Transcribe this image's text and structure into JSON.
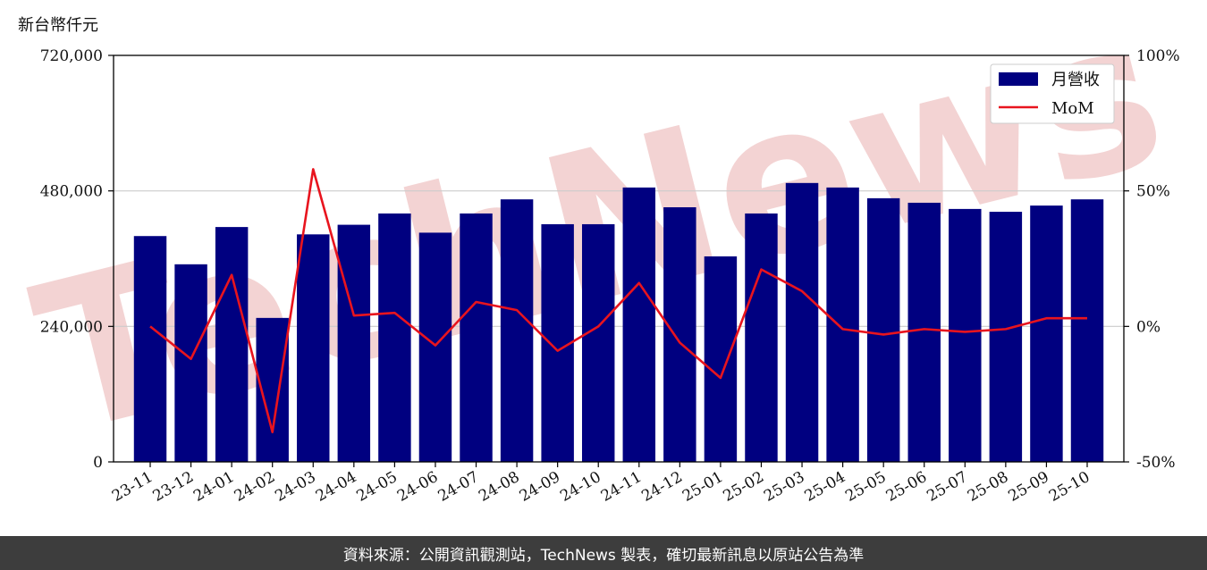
{
  "unit_label": "新台幣仟元",
  "footer_text": "資料來源：公開資訊觀測站，TechNews 製表，確切最新訊息以原站公告為準",
  "watermark_text": "TechNews",
  "colors": {
    "bar": "#000080",
    "line": "#e8141e",
    "grid": "#cccccc",
    "footer_bg": "#3d3d3d",
    "watermark": "#f3d3d3"
  },
  "chart_data": {
    "type": "bar",
    "categories": [
      "23-11",
      "23-12",
      "24-01",
      "24-02",
      "24-03",
      "24-04",
      "24-05",
      "24-06",
      "24-07",
      "24-08",
      "24-09",
      "24-10",
      "24-11",
      "24-12",
      "25-01",
      "25-02",
      "25-03",
      "25-04",
      "25-05",
      "25-06",
      "25-07",
      "25-08",
      "25-09",
      "25-10"
    ],
    "series": [
      {
        "name": "月營收",
        "type": "bar",
        "axis": "left",
        "values": [
          400000,
          350000,
          416000,
          255000,
          403000,
          420000,
          440000,
          406000,
          440000,
          465000,
          421000,
          421000,
          486000,
          451000,
          364000,
          440000,
          494000,
          486000,
          467000,
          459000,
          448000,
          443000,
          454000,
          465000
        ]
      },
      {
        "name": "MoM",
        "type": "line",
        "axis": "right",
        "values": [
          0,
          -12,
          19,
          -39,
          58,
          4,
          5,
          -7,
          9,
          6,
          -9,
          0,
          16,
          -6,
          -19,
          21,
          13,
          -1,
          -3,
          -1,
          -2,
          -1,
          3,
          3
        ]
      }
    ],
    "y_left": {
      "ticks": [
        0,
        240000,
        480000,
        720000
      ],
      "tick_labels": [
        "0",
        "240,000",
        "480,000",
        "720,000"
      ],
      "lim": [
        0,
        720000
      ]
    },
    "y_right": {
      "ticks": [
        -50,
        0,
        50,
        100
      ],
      "tick_labels": [
        "-50%",
        "0%",
        "50%",
        "100%"
      ],
      "lim": [
        -50,
        100
      ]
    },
    "grid": "horizontal",
    "legend_position": "top-right"
  }
}
